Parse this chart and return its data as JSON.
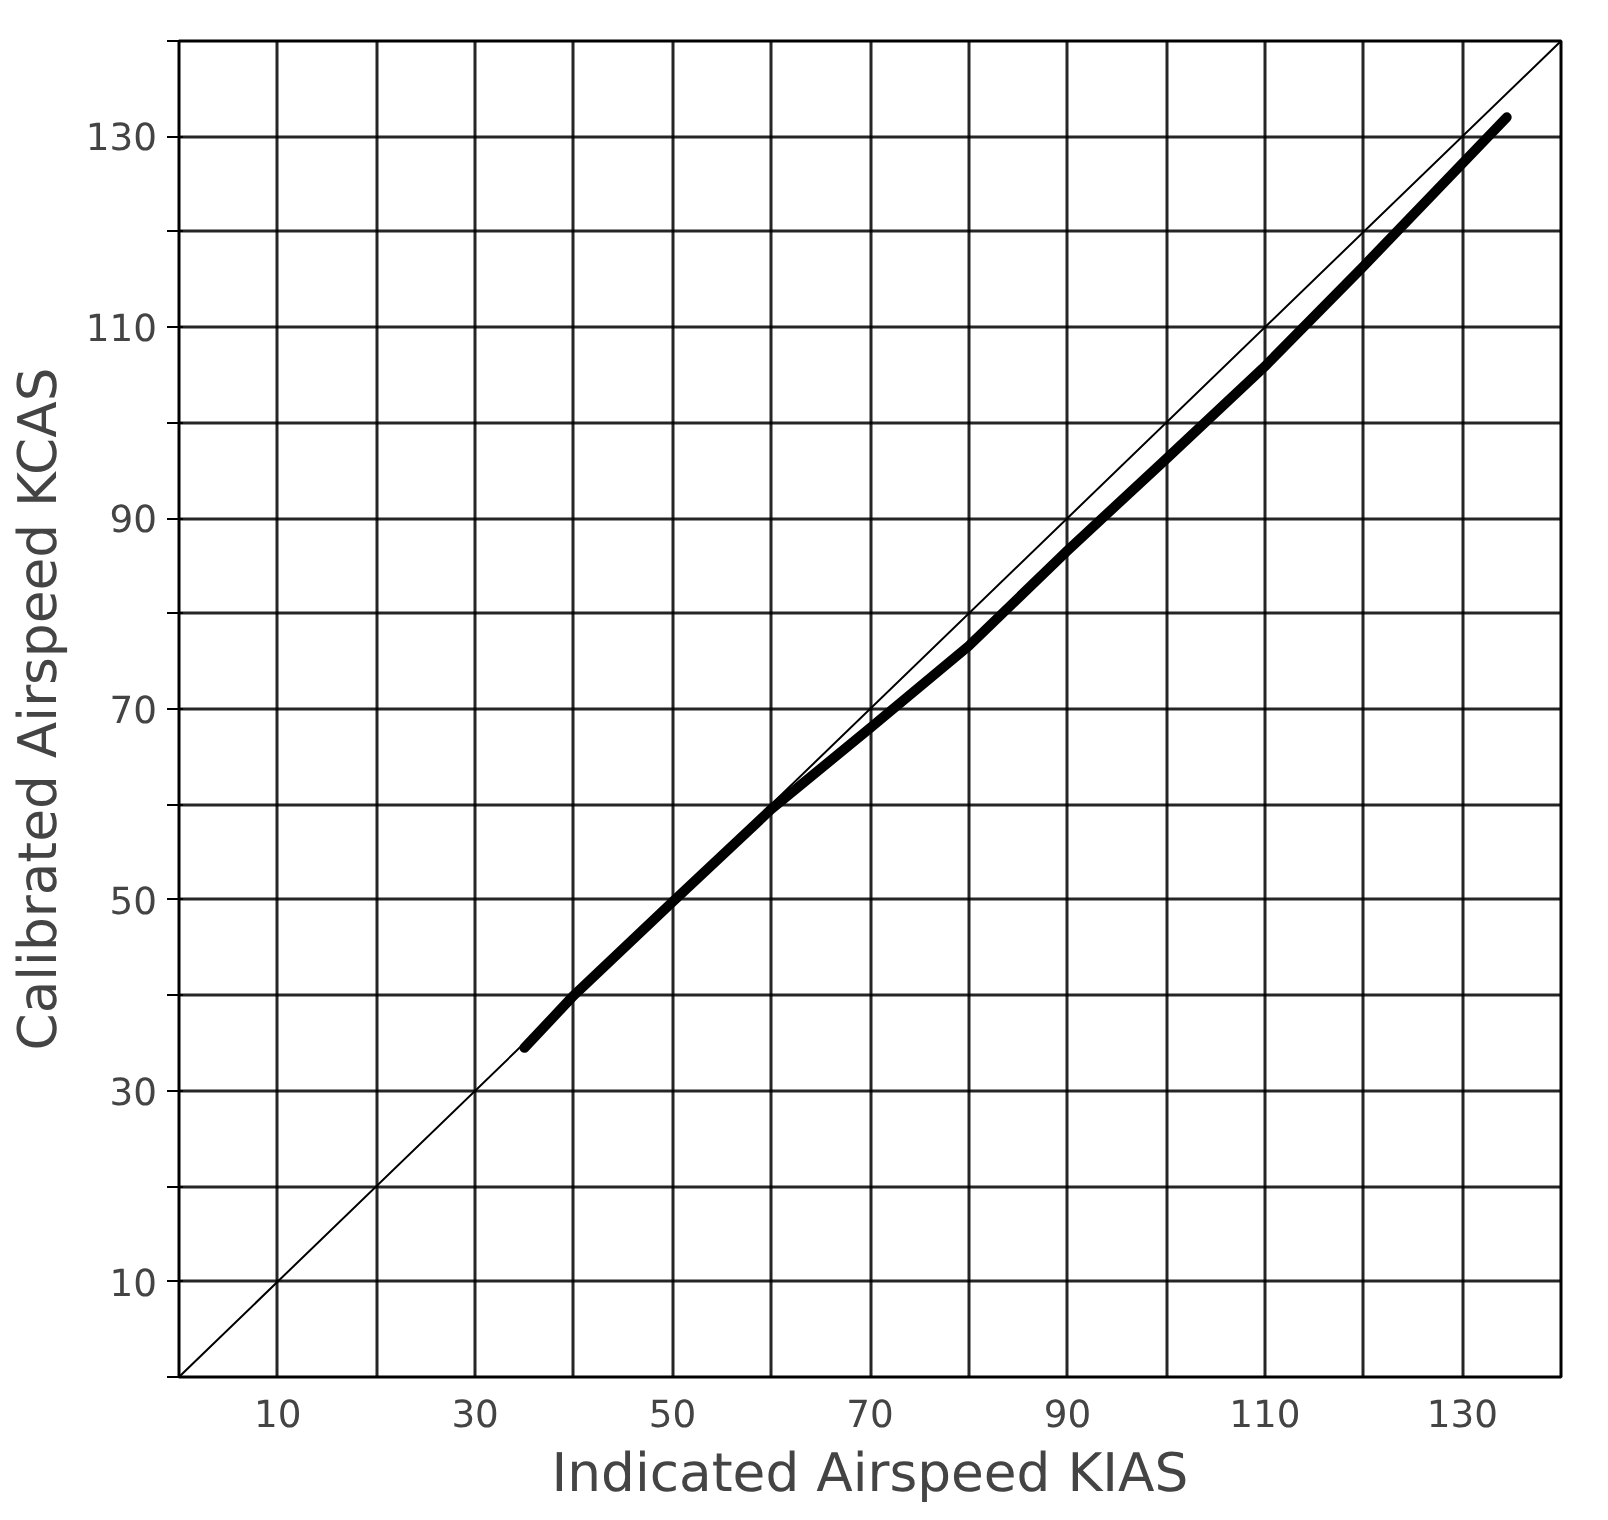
{
  "chart_data": {
    "type": "line",
    "xlabel": "Indicated Airspeed KIAS",
    "ylabel": "Calibrated Airspeed KCAS",
    "xlim": [
      0,
      140
    ],
    "ylim": [
      0,
      140
    ],
    "xticks": [
      {
        "value": 0,
        "label": null
      },
      10,
      {
        "value": 20,
        "label": null
      },
      30,
      {
        "value": 40,
        "label": null
      },
      50,
      {
        "value": 60,
        "label": null
      },
      70,
      {
        "value": 80,
        "label": null
      },
      90,
      {
        "value": 100,
        "label": null
      },
      110,
      {
        "value": 120,
        "label": null
      },
      130,
      {
        "value": 140,
        "label": null
      }
    ],
    "yticks": [
      {
        "value": 0,
        "label": null
      },
      10,
      {
        "value": 20,
        "label": null
      },
      30,
      {
        "value": 40,
        "label": null
      },
      50,
      {
        "value": 60,
        "label": null
      },
      70,
      {
        "value": 80,
        "label": null
      },
      90,
      {
        "value": 100,
        "label": null
      },
      110,
      {
        "value": 120,
        "label": null
      },
      130,
      {
        "value": 140,
        "label": null
      }
    ],
    "grid": true,
    "marker": "none",
    "series": [
      {
        "color": "#000000",
        "x": [
          0,
          140
        ],
        "values": [
          0,
          140
        ],
        "line_style": "solid"
      },
      {
        "color": "#000000",
        "x": [
          35,
          40,
          50,
          60,
          70,
          80,
          90,
          100,
          110,
          120,
          134.5
        ],
        "values": [
          34.5,
          40,
          49.8,
          59.5,
          68,
          76.6,
          86.6,
          96.2,
          105.9,
          116.4,
          132
        ],
        "line_style": "solid"
      }
    ]
  }
}
